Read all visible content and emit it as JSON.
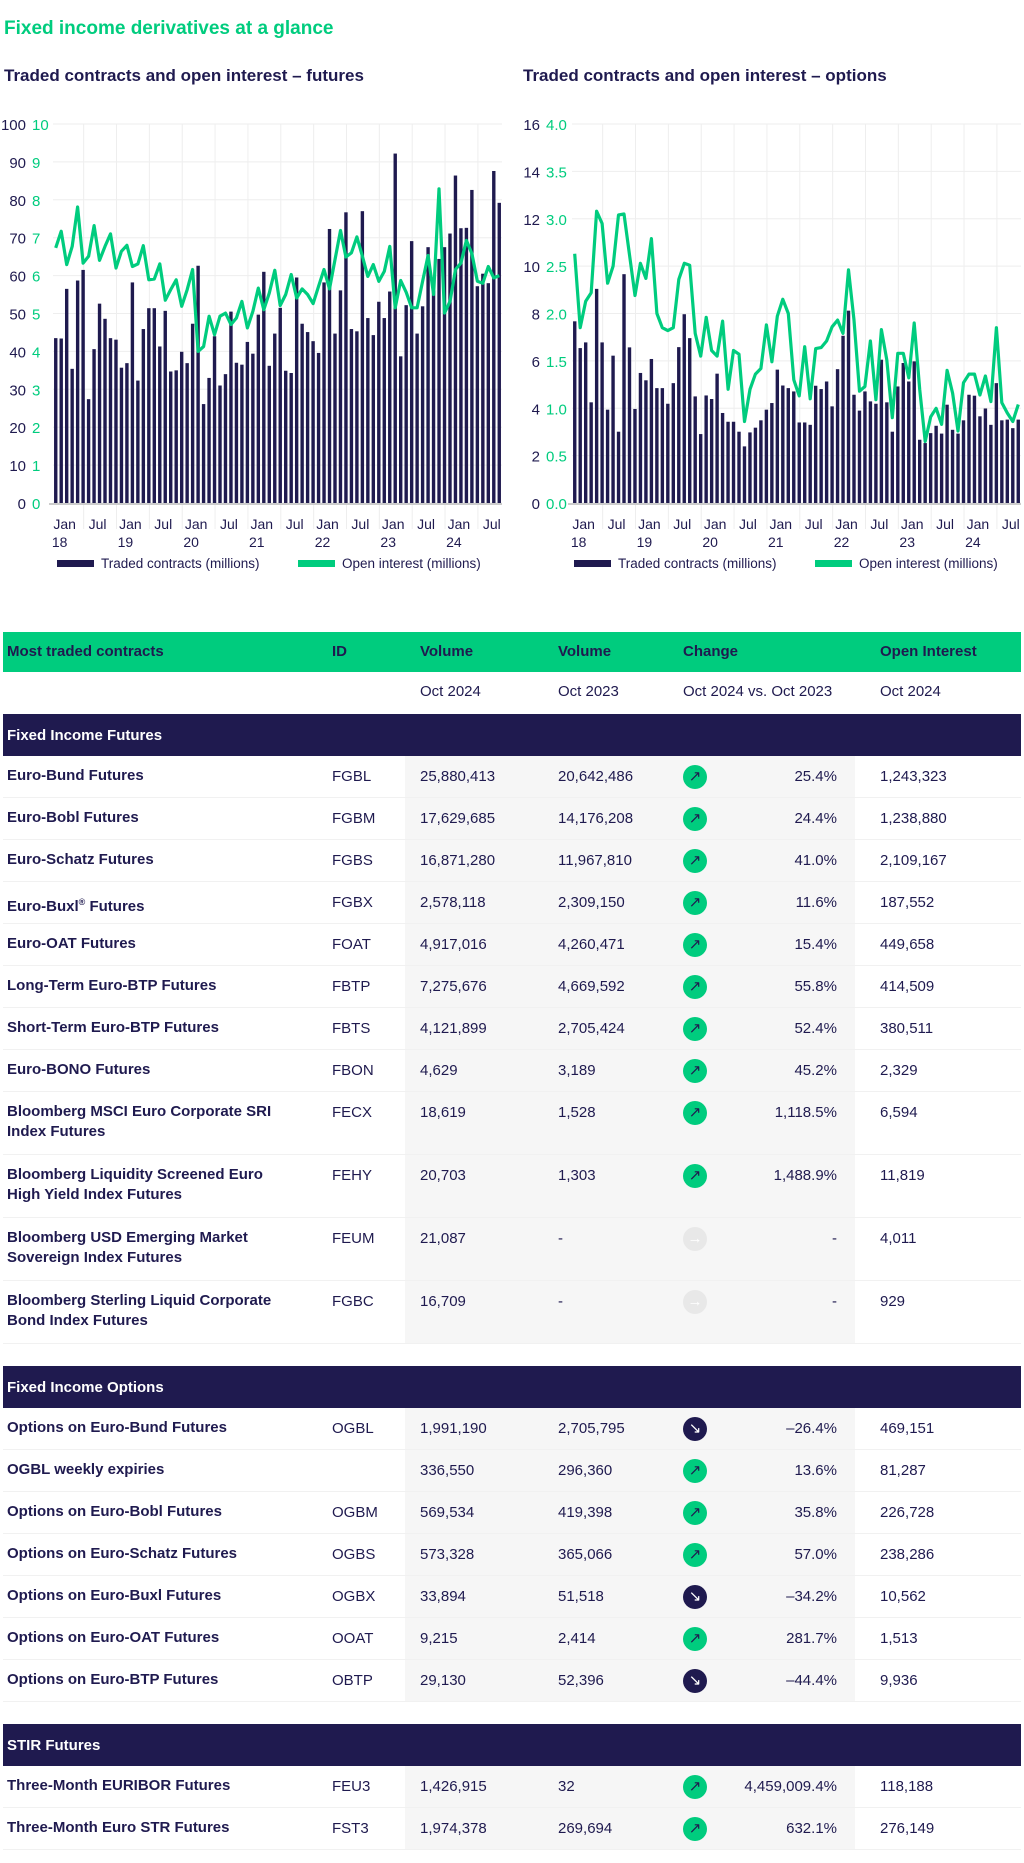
{
  "title": "Fixed income derivatives at a glance",
  "colors": {
    "navy": "#1F1A4F",
    "green": "#00CC7E",
    "gray": "#E8E8E8"
  },
  "chart_data": [
    {
      "type": "bar+line",
      "title": "Traded contracts and open interest – futures",
      "x_range": [
        "Jan 2018",
        "Oct 2024"
      ],
      "frequency": "monthly",
      "x_tick_labels": [
        {
          "m": "Jan",
          "y": "18"
        },
        {
          "m": "Jul",
          "y": ""
        },
        {
          "m": "Jan",
          "y": "19"
        },
        {
          "m": "Jul",
          "y": ""
        },
        {
          "m": "Jan",
          "y": "20"
        },
        {
          "m": "Jul",
          "y": ""
        },
        {
          "m": "Jan",
          "y": "21"
        },
        {
          "m": "Jul",
          "y": ""
        },
        {
          "m": "Jan",
          "y": "22"
        },
        {
          "m": "Jul",
          "y": ""
        },
        {
          "m": "Jan",
          "y": "23"
        },
        {
          "m": "Jul",
          "y": ""
        },
        {
          "m": "Jan",
          "y": "24"
        },
        {
          "m": "Jul",
          "y": ""
        }
      ],
      "y_left": {
        "range": [
          0,
          100
        ],
        "ticks": [
          "0",
          "10",
          "20",
          "30",
          "40",
          "50",
          "60",
          "70",
          "80",
          "90",
          "100"
        ]
      },
      "y_right": {
        "range": [
          0,
          10
        ],
        "ticks": [
          "0",
          "1",
          "2",
          "3",
          "4",
          "5",
          "6",
          "7",
          "8",
          "9",
          "10"
        ]
      },
      "grid": true,
      "legend_position": "bottom",
      "series": [
        {
          "name": "Traded contracts (millions)",
          "type": "bar",
          "axis": "left",
          "color": "#1F1A4F",
          "values": [
            43.5,
            43.4,
            56.5,
            35.4,
            58.7,
            61.5,
            27.4,
            40.6,
            52.6,
            48.6,
            43.5,
            43.1,
            35.7,
            36.9,
            58.2,
            32.3,
            45.9,
            51.4,
            51.4,
            41.3,
            50.7,
            34.7,
            35.0,
            39.9,
            36.9,
            47.3,
            62.6,
            26.1,
            33.0,
            44.0,
            31.0,
            34.0,
            50.5,
            37.0,
            36.5,
            42.5,
            39.4,
            49.7,
            61.0,
            36.2,
            44.7,
            51.5,
            34.9,
            34.3,
            59.5,
            47.3,
            45.1,
            42.7,
            39.6,
            58.2,
            72.3,
            44.7,
            56.1,
            76.7,
            45.9,
            45.3,
            77.0,
            48.8,
            44.3,
            53.1,
            48.8,
            55.8,
            92.2,
            38.7,
            52.2,
            69.1,
            44.7,
            51.9,
            67.5,
            56.0,
            64.4,
            67.5,
            71.1,
            86.4,
            72.5,
            72.6,
            82.6,
            57.2,
            60.5,
            58.0,
            87.6,
            79.2
          ]
        },
        {
          "name": "Open interest (millions)",
          "type": "line",
          "axis": "right",
          "color": "#00CC7E",
          "values": [
            6.73,
            7.17,
            6.29,
            6.77,
            7.81,
            6.33,
            6.51,
            7.32,
            6.4,
            6.77,
            7.1,
            6.2,
            6.64,
            6.8,
            6.24,
            6.31,
            6.79,
            5.89,
            5.91,
            6.31,
            5.35,
            5.63,
            5.89,
            5.19,
            5.63,
            6.16,
            4.0,
            4.13,
            4.93,
            4.44,
            4.93,
            5.01,
            4.71,
            4.88,
            5.32,
            4.62,
            5.06,
            5.67,
            5.1,
            5.54,
            6.14,
            5.21,
            5.5,
            6.03,
            5.41,
            5.65,
            5.5,
            5.26,
            5.72,
            6.16,
            5.65,
            6.42,
            7.19,
            6.49,
            6.6,
            7.02,
            6.51,
            5.98,
            6.29,
            5.85,
            6.11,
            6.77,
            5.15,
            5.87,
            5.56,
            5.15,
            5.15,
            5.85,
            6.53,
            5.5,
            8.29,
            5.01,
            5.32,
            6.16,
            6.33,
            6.93,
            6.58,
            5.85,
            5.8,
            6.24,
            5.94,
            6.0
          ]
        }
      ]
    },
    {
      "type": "bar+line",
      "title": "Traded contracts and open interest – options",
      "x_range": [
        "Jan 2018",
        "Oct 2024"
      ],
      "frequency": "monthly",
      "x_tick_labels": [
        {
          "m": "Jan",
          "y": "18"
        },
        {
          "m": "Jul",
          "y": ""
        },
        {
          "m": "Jan",
          "y": "19"
        },
        {
          "m": "Jul",
          "y": ""
        },
        {
          "m": "Jan",
          "y": "20"
        },
        {
          "m": "Jul",
          "y": ""
        },
        {
          "m": "Jan",
          "y": "21"
        },
        {
          "m": "Jul",
          "y": ""
        },
        {
          "m": "Jan",
          "y": "22"
        },
        {
          "m": "Jul",
          "y": ""
        },
        {
          "m": "Jan",
          "y": "23"
        },
        {
          "m": "Jul",
          "y": ""
        },
        {
          "m": "Jan",
          "y": "24"
        },
        {
          "m": "Jul",
          "y": ""
        }
      ],
      "y_left": {
        "range": [
          0,
          16
        ],
        "ticks": [
          "0",
          "2",
          "4",
          "6",
          "8",
          "10",
          "12",
          "14",
          "16"
        ]
      },
      "y_right": {
        "range": [
          0,
          4
        ],
        "ticks": [
          "0.0",
          "0.5",
          "1.0",
          "1.5",
          "2.0",
          "2.5",
          "3.0",
          "3.5",
          "4.0"
        ]
      },
      "grid": true,
      "legend_position": "bottom",
      "series": [
        {
          "name": "Traded contracts (millions)",
          "type": "bar",
          "axis": "left",
          "color": "#1F1A4F",
          "values": [
            7.67,
            6.54,
            6.78,
            4.25,
            9.04,
            6.78,
            3.94,
            6.22,
            3.01,
            9.66,
            6.57,
            3.97,
            5.49,
            5.18,
            6.08,
            4.85,
            4.85,
            4.19,
            5.06,
            6.58,
            7.97,
            6.96,
            4.5,
            2.91,
            4.54,
            4.39,
            5.46,
            3.8,
            3.43,
            3.43,
            3.01,
            2.39,
            2.98,
            3.18,
            3.49,
            3.94,
            4.22,
            5.63,
            4.96,
            4.85,
            4.71,
            3.4,
            3.4,
            3.3,
            4.95,
            4.81,
            5.13,
            4.08,
            5.65,
            7.06,
            8.12,
            4.57,
            3.9,
            4.71,
            4.29,
            4.19,
            6.05,
            4.25,
            3.01,
            4.92,
            5.91,
            5.13,
            5.98,
            2.67,
            2.53,
            2.95,
            3.26,
            2.93,
            4.15,
            3.09,
            2.93,
            3.49,
            4.57,
            4.53,
            3.66,
            3.99,
            3.3,
            5.06,
            3.49,
            3.52,
            3.16,
            3.52
          ]
        },
        {
          "name": "Open interest (millions)",
          "type": "line",
          "axis": "right",
          "color": "#00CC7E",
          "values": [
            2.63,
            1.85,
            2.13,
            2.22,
            3.08,
            2.95,
            2.32,
            2.5,
            3.04,
            3.05,
            2.62,
            2.19,
            2.53,
            2.37,
            2.79,
            2.0,
            1.85,
            1.82,
            1.85,
            2.36,
            2.53,
            2.51,
            1.79,
            1.55,
            1.96,
            1.61,
            1.55,
            1.92,
            1.2,
            1.61,
            1.57,
            0.86,
            1.2,
            1.36,
            1.42,
            1.88,
            1.49,
            1.97,
            2.15,
            2.0,
            1.3,
            1.13,
            1.65,
            1.1,
            1.63,
            1.64,
            1.71,
            1.86,
            1.93,
            1.79,
            2.46,
            1.93,
            1.18,
            1.23,
            1.71,
            1.09,
            1.83,
            1.51,
            0.9,
            1.58,
            1.58,
            1.32,
            1.9,
            1.2,
            0.65,
            0.91,
            1.0,
            0.83,
            1.4,
            1.16,
            0.76,
            1.27,
            1.36,
            1.36,
            1.14,
            1.34,
            1.07,
            1.85,
            1.06,
            0.95,
            0.86,
            1.04
          ]
        }
      ]
    }
  ],
  "table": {
    "headers": [
      "Most traded contracts",
      "ID",
      "Volume",
      "Volume",
      "Change",
      "Open Interest"
    ],
    "subheaders": [
      "",
      "",
      "Oct 2024",
      "Oct 2023",
      "Oct 2024 vs. Oct 2023",
      "Oct 2024"
    ],
    "sections": [
      {
        "title": "Fixed Income Futures",
        "rows": [
          {
            "name": "Euro-Bund Futures",
            "id": "FGBL",
            "v1": "25,880,413",
            "v2": "20,642,486",
            "trend": "up",
            "change": "25.4%",
            "oi": "1,243,323"
          },
          {
            "name": "Euro-Bobl Futures",
            "id": "FGBM",
            "v1": "17,629,685",
            "v2": "14,176,208",
            "trend": "up",
            "change": "24.4%",
            "oi": "1,238,880"
          },
          {
            "name": "Euro-Schatz Futures",
            "id": "FGBS",
            "v1": "16,871,280",
            "v2": "11,967,810",
            "trend": "up",
            "change": "41.0%",
            "oi": "2,109,167"
          },
          {
            "name": "Euro-Buxl",
            "sup": "®",
            "name_tail": " Futures",
            "id": "FGBX",
            "v1": "2,578,118",
            "v2": "2,309,150",
            "trend": "up",
            "change": "11.6%",
            "oi": "187,552"
          },
          {
            "name": "Euro-OAT Futures",
            "id": "FOAT",
            "v1": "4,917,016",
            "v2": "4,260,471",
            "trend": "up",
            "change": "15.4%",
            "oi": "449,658"
          },
          {
            "name": "Long-Term Euro-BTP Futures",
            "id": "FBTP",
            "v1": "7,275,676",
            "v2": "4,669,592",
            "trend": "up",
            "change": "55.8%",
            "oi": "414,509"
          },
          {
            "name": "Short-Term Euro-BTP Futures",
            "id": "FBTS",
            "v1": "4,121,899",
            "v2": "2,705,424",
            "trend": "up",
            "change": "52.4%",
            "oi": "380,511"
          },
          {
            "name": "Euro-BONO Futures",
            "id": "FBON",
            "v1": "4,629",
            "v2": "3,189",
            "trend": "up",
            "change": "45.2%",
            "oi": "2,329"
          },
          {
            "name": "Bloomberg MSCI Euro Corporate SRI Index Futures",
            "id": "FECX",
            "v1": "18,619",
            "v2": "1,528",
            "trend": "up",
            "change": "1,118.5%",
            "oi": "6,594",
            "two": true
          },
          {
            "name": "Bloomberg Liquidity Screened Euro High Yield Index Futures",
            "id": "FEHY",
            "v1": "20,703",
            "v2": "1,303",
            "trend": "up",
            "change": "1,488.9%",
            "oi": "11,819",
            "two": true
          },
          {
            "name": "Bloomberg USD Emerging Market Sovereign Index Futures",
            "id": "FEUM",
            "v1": "21,087",
            "v2": "-",
            "trend": "flat",
            "change": "-",
            "oi": "4,011",
            "two": true
          },
          {
            "name": "Bloomberg Sterling Liquid Corporate Bond Index Futures",
            "id": "FGBC",
            "v1": "16,709",
            "v2": "-",
            "trend": "flat",
            "change": "-",
            "oi": "929",
            "two": true
          }
        ]
      },
      {
        "title": "Fixed Income Options",
        "rows": [
          {
            "name": "Options on Euro-Bund Futures",
            "id": "OGBL",
            "v1": "1,991,190",
            "v2": "2,705,795",
            "trend": "down",
            "change": "–26.4%",
            "oi": "469,151"
          },
          {
            "name": "OGBL weekly expiries",
            "id": "",
            "v1": "336,550",
            "v2": "296,360",
            "trend": "up",
            "change": "13.6%",
            "oi": "81,287"
          },
          {
            "name": "Options on Euro-Bobl Futures",
            "id": "OGBM",
            "v1": "569,534",
            "v2": "419,398",
            "trend": "up",
            "change": "35.8%",
            "oi": "226,728"
          },
          {
            "name": "Options on Euro-Schatz Futures",
            "id": "OGBS",
            "v1": "573,328",
            "v2": "365,066",
            "trend": "up",
            "change": "57.0%",
            "oi": "238,286"
          },
          {
            "name": "Options on Euro-Buxl Futures",
            "id": "OGBX",
            "v1": "33,894",
            "v2": "51,518",
            "trend": "down",
            "change": "–34.2%",
            "oi": "10,562"
          },
          {
            "name": "Options on Euro-OAT Futures",
            "id": "OOAT",
            "v1": "9,215",
            "v2": "2,414",
            "trend": "up",
            "change": "281.7%",
            "oi": "1,513"
          },
          {
            "name": "Options on Euro-BTP Futures",
            "id": "OBTP",
            "v1": "29,130",
            "v2": "52,396",
            "trend": "down",
            "change": "–44.4%",
            "oi": "9,936"
          }
        ]
      },
      {
        "title": "STIR Futures",
        "rows": [
          {
            "name": "Three-Month EURIBOR Futures",
            "id": "FEU3",
            "v1": "1,426,915",
            "v2": "32",
            "trend": "up",
            "change": "4,459,009.4%",
            "oi": "118,188"
          },
          {
            "name": "Three-Month Euro STR Futures",
            "id": "FST3",
            "v1": "1,974,378",
            "v2": "269,694",
            "trend": "up",
            "change": "632.1%",
            "oi": "276,149"
          }
        ]
      }
    ]
  }
}
